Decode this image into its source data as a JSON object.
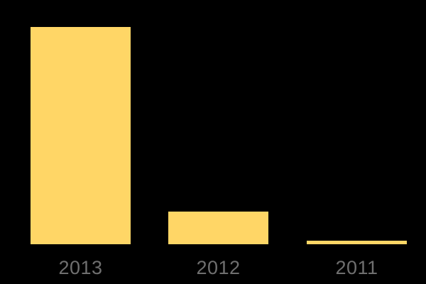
{
  "chart_data": {
    "type": "bar",
    "categories": [
      "2013",
      "2012",
      "2011"
    ],
    "values": [
      306,
      46,
      5
    ],
    "values_note": "relative magnitudes estimated from bar heights; no value axis or data labels are shown in the image",
    "title": "",
    "xlabel": "",
    "ylabel": "",
    "grid": false,
    "legend": false,
    "axis_lines": false,
    "background_color": "#000000",
    "bar_color": "#FFD666",
    "label_color": "#6F6F6F"
  }
}
